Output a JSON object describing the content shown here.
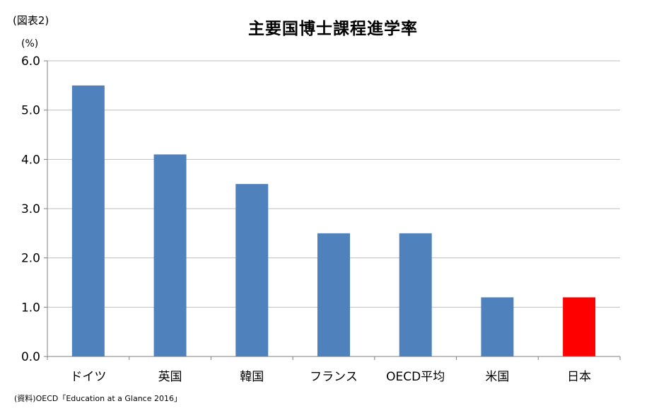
{
  "figure_label": "(図表2)",
  "unit_label": "(%)",
  "source_note": "(資料)OECD「Education at a Glance 2016」",
  "chart_data": {
    "type": "bar",
    "title": "主要国博士課程進学率",
    "xlabel": "",
    "ylabel": "(%)",
    "categories": [
      "ドイツ",
      "英国",
      "韓国",
      "フランス",
      "OECD平均",
      "米国",
      "日本"
    ],
    "values": [
      5.5,
      4.1,
      3.5,
      2.5,
      2.5,
      1.2,
      1.2
    ],
    "ylim": [
      0,
      6
    ],
    "y_ticks": [
      "0.0",
      "1.0",
      "2.0",
      "3.0",
      "4.0",
      "5.0",
      "6.0"
    ],
    "grid": true,
    "legend": "none",
    "colors": {
      "default_bar": "#4f81bd",
      "highlight_bar": "#ff0000",
      "highlight_category": "日本",
      "gridline": "#bfbfbf",
      "axis": "#808080"
    }
  }
}
